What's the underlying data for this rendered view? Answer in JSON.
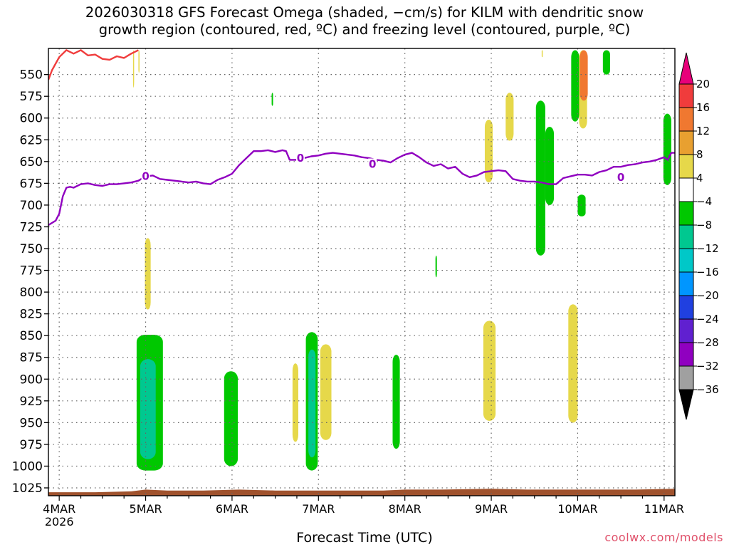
{
  "title_line1": "2026030318 GFS Forecast Omega (shaded, −cm/s) for KILM with dendritic snow",
  "title_line2": "growth region (contoured, red, ºC) and freezing level (contoured, purple, ºC)",
  "credit": "coolwx.com/models",
  "chart_data": {
    "type": "heatmap",
    "xlabel": "Forecast Time (UTC)",
    "ylabel": "",
    "x_axis": {
      "unit": "hours since 2026-03-04 00Z",
      "xlim": [
        -3,
        171
      ],
      "ticks": [
        {
          "x": 0,
          "label": "4MAR",
          "sublabel": "2026"
        },
        {
          "x": 24,
          "label": "5MAR"
        },
        {
          "x": 48,
          "label": "6MAR"
        },
        {
          "x": 72,
          "label": "7MAR"
        },
        {
          "x": 96,
          "label": "8MAR"
        },
        {
          "x": 120,
          "label": "9MAR"
        },
        {
          "x": 144,
          "label": "10MAR"
        },
        {
          "x": 168,
          "label": "11MAR"
        }
      ]
    },
    "y_axis": {
      "unit": "hPa",
      "ylim": [
        1034,
        520
      ],
      "ticks": [
        550,
        575,
        600,
        625,
        650,
        675,
        700,
        725,
        750,
        775,
        800,
        825,
        850,
        875,
        900,
        925,
        950,
        975,
        1000,
        1025
      ],
      "grid": true
    },
    "colorbar": {
      "levels": [
        "20",
        "16",
        "12",
        "8",
        "4",
        "−4",
        "−8",
        "−12",
        "−16",
        "−20",
        "−24",
        "−28",
        "−32",
        "−36"
      ],
      "colors": [
        "#e8007a",
        "#f03c3c",
        "#f07830",
        "#e8a030",
        "#e6d84a",
        "#ffffff",
        "#00c800",
        "#00c890",
        "#00c8c8",
        "#0096ff",
        "#2040e0",
        "#6020d0",
        "#9000c0",
        "#a0a0a0",
        "#000000"
      ]
    },
    "omega_regions": [
      {
        "color": "#e6d84a",
        "t0": 20.5,
        "t1": 20.8,
        "p0": 522,
        "p1": 565
      },
      {
        "color": "#e6d84a",
        "t0": 22.0,
        "t1": 22.3,
        "p0": 522,
        "p1": 548
      },
      {
        "color": "#00c800",
        "t0": 59.0,
        "t1": 59.4,
        "p0": 571,
        "p1": 586
      },
      {
        "color": "#e6d84a",
        "t0": 134.0,
        "t1": 134.3,
        "p0": 522,
        "p1": 530
      },
      {
        "color": "#e6d84a",
        "t0": 23.8,
        "t1": 25.4,
        "p0": 738,
        "p1": 820
      },
      {
        "color": "#00c800",
        "t0": 21.5,
        "t1": 28.8,
        "p0": 849,
        "p1": 1005
      },
      {
        "color": "#00c890",
        "t0": 22.5,
        "t1": 26.8,
        "p0": 877,
        "p1": 992
      },
      {
        "color": "#00c800",
        "t0": 45.8,
        "t1": 49.6,
        "p0": 891,
        "p1": 1000
      },
      {
        "color": "#e6d84a",
        "t0": 64.8,
        "t1": 66.4,
        "p0": 882,
        "p1": 972
      },
      {
        "color": "#e6d84a",
        "t0": 72.5,
        "t1": 75.6,
        "p0": 860,
        "p1": 970
      },
      {
        "color": "#00c800",
        "t0": 68.5,
        "t1": 71.8,
        "p0": 846,
        "p1": 1005
      },
      {
        "color": "#00c890",
        "t0": 69.2,
        "t1": 71.2,
        "p0": 866,
        "p1": 990
      },
      {
        "color": "#00c800",
        "t0": 92.6,
        "t1": 94.6,
        "p0": 872,
        "p1": 980
      },
      {
        "color": "#00c800",
        "t0": 104.5,
        "t1": 104.9,
        "p0": 758,
        "p1": 783
      },
      {
        "color": "#e6d84a",
        "t0": 118.2,
        "t1": 120.4,
        "p0": 602,
        "p1": 674
      },
      {
        "color": "#e6d84a",
        "t0": 124.0,
        "t1": 126.2,
        "p0": 571,
        "p1": 626
      },
      {
        "color": "#e6d84a",
        "t0": 117.8,
        "t1": 121.2,
        "p0": 833,
        "p1": 948
      },
      {
        "color": "#00c800",
        "t0": 132.4,
        "t1": 135.0,
        "p0": 580,
        "p1": 758
      },
      {
        "color": "#00c800",
        "t0": 135.0,
        "t1": 137.4,
        "p0": 610,
        "p1": 700
      },
      {
        "color": "#00c800",
        "t0": 142.2,
        "t1": 144.4,
        "p0": 522,
        "p1": 604
      },
      {
        "color": "#e6d84a",
        "t0": 144.4,
        "t1": 146.6,
        "p0": 522,
        "p1": 612
      },
      {
        "color": "#f07830",
        "t0": 144.6,
        "t1": 146.8,
        "p0": 522,
        "p1": 580
      },
      {
        "color": "#00c800",
        "t0": 144.0,
        "t1": 146.2,
        "p0": 688,
        "p1": 713
      },
      {
        "color": "#00c800",
        "t0": 151.0,
        "t1": 153.0,
        "p0": 522,
        "p1": 550
      },
      {
        "color": "#e6d84a",
        "t0": 141.4,
        "t1": 144.0,
        "p0": 814,
        "p1": 950
      },
      {
        "color": "#00c800",
        "t0": 167.8,
        "t1": 170.0,
        "p0": 595,
        "p1": 677
      }
    ],
    "contours": [
      {
        "color": "#f03c3c",
        "points": [
          [
            -3,
            556
          ],
          [
            -2,
            545
          ],
          [
            0,
            530
          ],
          [
            2,
            522
          ],
          [
            4,
            526
          ],
          [
            6,
            522
          ],
          [
            8,
            528
          ],
          [
            10,
            527
          ],
          [
            12,
            532
          ],
          [
            14,
            533
          ],
          [
            16,
            529
          ],
          [
            18,
            531
          ],
          [
            20,
            526
          ],
          [
            22,
            522
          ]
        ]
      },
      {
        "color": "#9000c0",
        "label": "0",
        "label_at": [
          [
            24,
            667
          ],
          [
            67,
            646
          ],
          [
            87,
            653
          ],
          [
            156,
            668
          ]
        ],
        "points": [
          [
            -3,
            723
          ],
          [
            -1,
            718
          ],
          [
            0,
            710
          ],
          [
            1,
            690
          ],
          [
            2,
            680
          ],
          [
            3,
            679
          ],
          [
            4,
            680
          ],
          [
            6,
            676
          ],
          [
            8,
            675
          ],
          [
            10,
            677
          ],
          [
            12,
            678
          ],
          [
            14,
            676
          ],
          [
            16,
            676
          ],
          [
            18,
            675
          ],
          [
            20,
            674
          ],
          [
            22,
            672
          ],
          [
            24,
            667
          ],
          [
            26,
            666
          ],
          [
            28,
            670
          ],
          [
            30,
            671
          ],
          [
            32,
            672
          ],
          [
            34,
            673
          ],
          [
            36,
            674
          ],
          [
            38,
            673
          ],
          [
            40,
            675
          ],
          [
            42,
            676
          ],
          [
            44,
            671
          ],
          [
            46,
            668
          ],
          [
            48,
            664
          ],
          [
            50,
            654
          ],
          [
            52,
            646
          ],
          [
            54,
            638
          ],
          [
            56,
            638
          ],
          [
            58,
            637
          ],
          [
            60,
            639
          ],
          [
            62,
            637
          ],
          [
            63,
            638
          ],
          [
            64,
            648
          ],
          [
            66,
            648
          ],
          [
            68,
            646
          ],
          [
            70,
            644
          ],
          [
            72,
            643
          ],
          [
            74,
            641
          ],
          [
            76,
            640
          ],
          [
            78,
            641
          ],
          [
            80,
            642
          ],
          [
            82,
            643
          ],
          [
            84,
            645
          ],
          [
            86,
            646
          ],
          [
            88,
            648
          ],
          [
            90,
            649
          ],
          [
            92,
            651
          ],
          [
            94,
            646
          ],
          [
            96,
            642
          ],
          [
            98,
            640
          ],
          [
            100,
            645
          ],
          [
            102,
            651
          ],
          [
            104,
            655
          ],
          [
            106,
            653
          ],
          [
            108,
            658
          ],
          [
            110,
            656
          ],
          [
            112,
            664
          ],
          [
            114,
            668
          ],
          [
            116,
            666
          ],
          [
            118,
            662
          ],
          [
            120,
            661
          ],
          [
            122,
            660
          ],
          [
            124,
            661
          ],
          [
            126,
            670
          ],
          [
            128,
            672
          ],
          [
            130,
            673
          ],
          [
            132,
            673
          ],
          [
            134,
            674
          ],
          [
            136,
            676
          ],
          [
            138,
            676
          ],
          [
            140,
            669
          ],
          [
            142,
            667
          ],
          [
            144,
            665
          ],
          [
            146,
            665
          ],
          [
            148,
            666
          ],
          [
            150,
            662
          ],
          [
            152,
            660
          ],
          [
            154,
            656
          ],
          [
            156,
            656
          ],
          [
            158,
            654
          ],
          [
            160,
            653
          ],
          [
            162,
            651
          ],
          [
            164,
            650
          ],
          [
            166,
            648
          ],
          [
            168,
            645
          ],
          [
            169,
            648
          ],
          [
            170,
            640
          ],
          [
            171,
            640
          ]
        ]
      }
    ],
    "terrain": {
      "color": "#a0522d",
      "points": [
        [
          -3,
          1030
        ],
        [
          10,
          1030
        ],
        [
          20,
          1029
        ],
        [
          24,
          1027
        ],
        [
          30,
          1028
        ],
        [
          40,
          1028
        ],
        [
          50,
          1027
        ],
        [
          60,
          1028
        ],
        [
          70,
          1028
        ],
        [
          80,
          1028
        ],
        [
          90,
          1028
        ],
        [
          96,
          1027
        ],
        [
          106,
          1027
        ],
        [
          120,
          1026
        ],
        [
          130,
          1027
        ],
        [
          140,
          1027
        ],
        [
          150,
          1027
        ],
        [
          160,
          1027
        ],
        [
          171,
          1026
        ]
      ]
    }
  }
}
